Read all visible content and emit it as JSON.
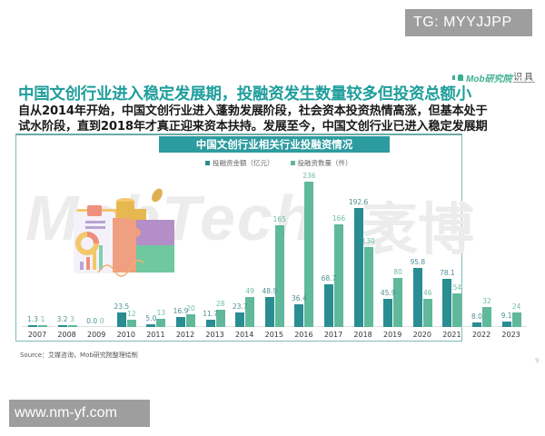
{
  "watermarks": {
    "top_right": "TG: MYYJJPP",
    "bottom_left": "www.nm-yf.com",
    "background_en": "MobTech",
    "background_cn": "袤博"
  },
  "branding": {
    "logo_text": "Mob研究院",
    "logo2_text": "识具"
  },
  "title": "中国文创行业进入稳定发展期，投融资发生数量较多但投资总额小",
  "subtitle_lines": [
    "自从2014年开始，中国文创行业进入蓬勃发展阶段，社会资本投资热情高涨，但基本处于",
    "试水阶段，直到2018年才真正迎来资本扶持。发展至今，中国文创行业已进入稳定发展期"
  ],
  "colors": {
    "title": "#1f9e9c",
    "banner": "#2c9ca0",
    "amount_series": "#2a8d92",
    "count_series": "#5fb99a"
  },
  "chart_data": {
    "type": "bar",
    "title": "中国文创行业相关行业投融资情况",
    "xlabel": "",
    "ylabel": "",
    "categories": [
      "2007",
      "2008",
      "2009",
      "2010",
      "2011",
      "2012",
      "2013",
      "2014",
      "2015",
      "2016",
      "2017",
      "2018",
      "2019",
      "2020",
      "2021",
      "2022",
      "2023"
    ],
    "series": [
      {
        "name": "投融资金额（亿元）",
        "values": [
          1.3,
          3.2,
          0.0,
          23.5,
          5.0,
          16.9,
          11.7,
          23.7,
          48.9,
          36.4,
          68.7,
          192.6,
          45.9,
          95.8,
          78.1,
          8.0,
          9.1
        ]
      },
      {
        "name": "投融资数量（件）",
        "values": [
          1,
          3,
          0,
          12,
          13,
          20,
          28,
          49,
          165,
          236,
          166,
          130,
          80,
          46,
          54,
          32,
          24
        ]
      }
    ],
    "legend_position": "top",
    "grid": false,
    "ylim": [
      0,
      250
    ]
  },
  "source": "Source：艾媒咨询，Mob研究院整理绘制",
  "page_number": "9"
}
